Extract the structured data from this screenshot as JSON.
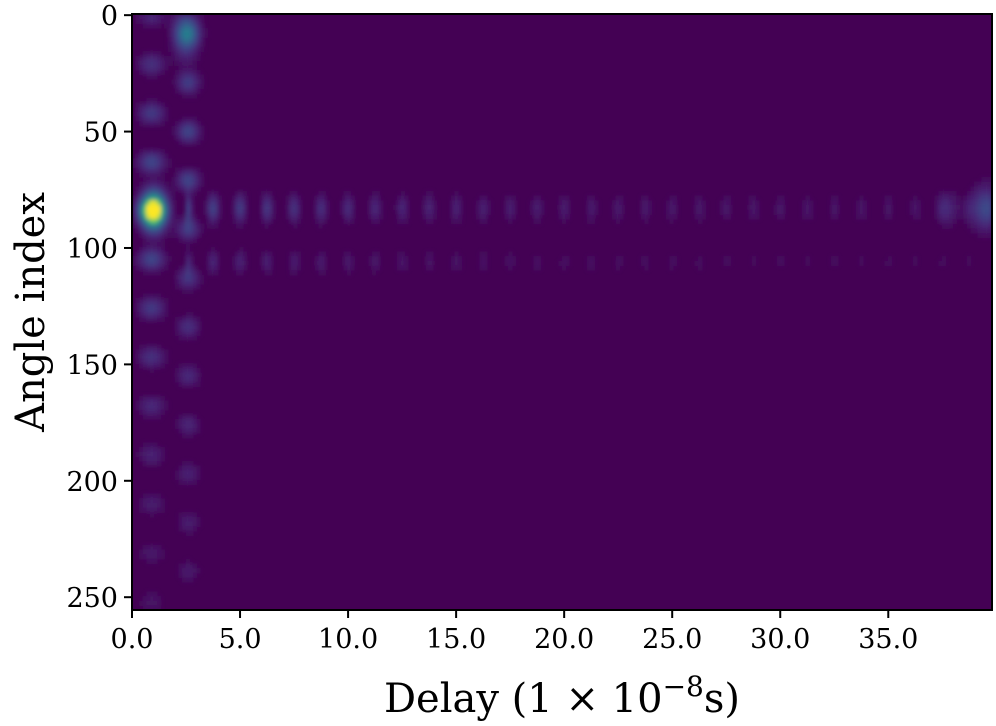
{
  "chart_data": {
    "type": "heatmap",
    "title": "",
    "xlabel": "Delay (1 × 10",
    "xlabel_exponent": "−8",
    "xlabel_suffix": "s)",
    "ylabel": "Angle index",
    "xlim": [
      0,
      39.8
    ],
    "ylim": [
      255.5,
      -0.5
    ],
    "x_ticks": [
      0,
      5,
      10,
      15,
      20,
      25,
      30,
      35
    ],
    "x_tick_labels": [
      "0.0",
      "5.0",
      "10.0",
      "15.0",
      "20.0",
      "25.0",
      "30.0",
      "35.0"
    ],
    "y_ticks": [
      0,
      50,
      100,
      150,
      200,
      250
    ],
    "y_tick_labels": [
      "0",
      "50",
      "100",
      "150",
      "200",
      "250"
    ],
    "colormap": "viridis",
    "background_color": "#440154",
    "peaks": [
      {
        "delay": 1.0,
        "angle": 84,
        "intensity": 1.0
      },
      {
        "delay": 2.5,
        "angle": 8,
        "intensity": 0.35
      },
      {
        "delay": 39.5,
        "angle": 83,
        "intensity": 0.28
      }
    ],
    "features": [
      {
        "name": "angle-ridge",
        "angle_center": 83,
        "angle_spread": 7,
        "delay_range": [
          3,
          38
        ],
        "intensity": 0.2
      },
      {
        "name": "delay-sidelobes",
        "delay_center": 1.8,
        "delay_spread": 1.3,
        "angle_range": [
          0,
          255
        ],
        "intensity": 0.28
      }
    ]
  }
}
